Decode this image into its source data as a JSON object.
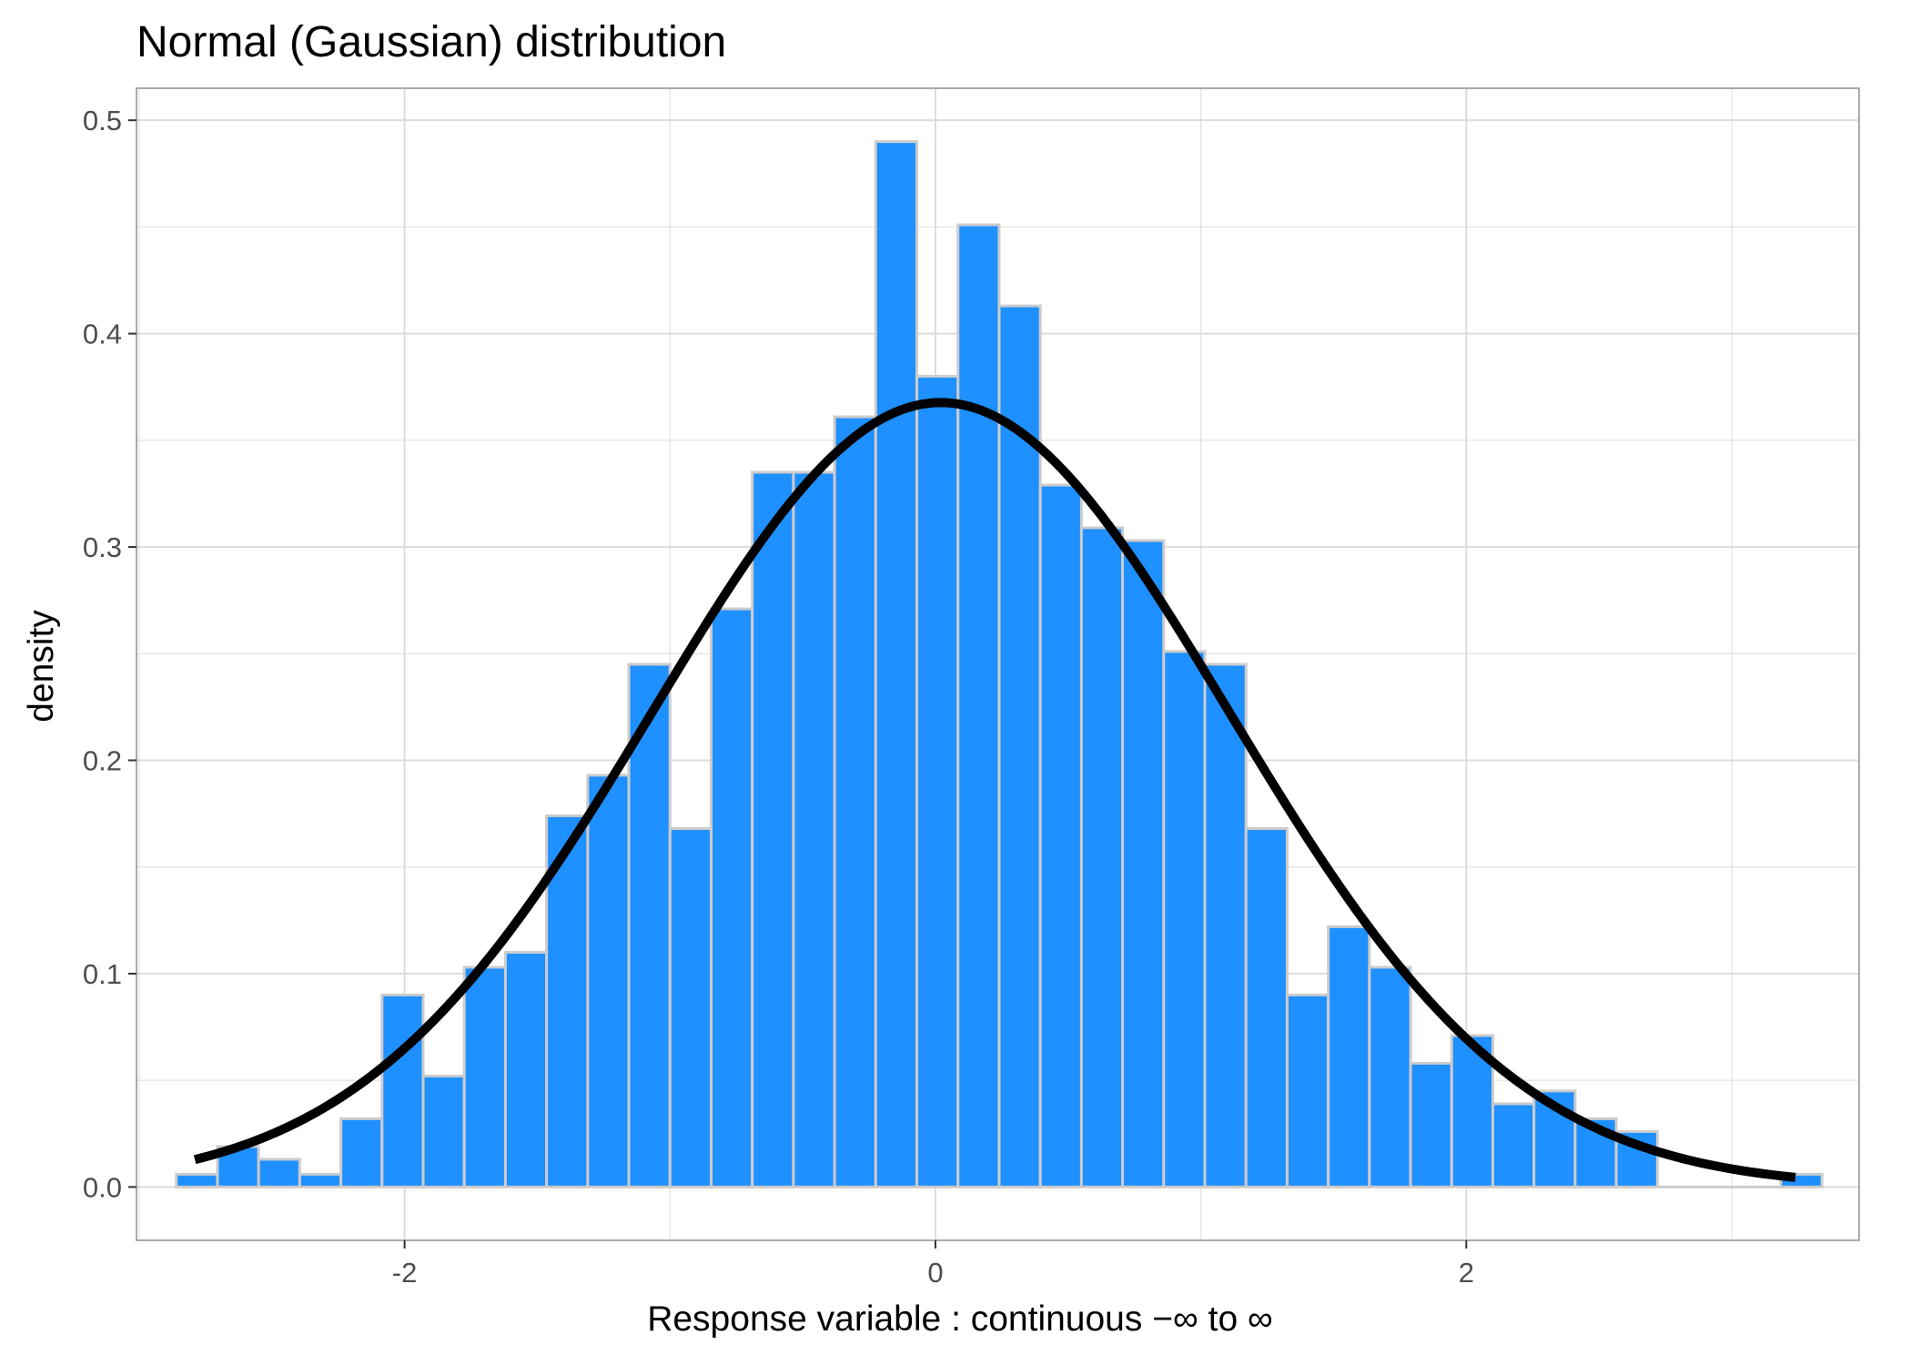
{
  "chart_data": {
    "type": "histogram",
    "title": "Normal (Gaussian) distribution",
    "xlabel": "Response variable :  continuous −∞ to ∞",
    "ylabel": "density",
    "xlim": [
      -3.01,
      3.48
    ],
    "ylim": [
      -0.025,
      0.515
    ],
    "x_ticks": [
      -2,
      0,
      2
    ],
    "x_tick_labels": [
      "-2",
      "0",
      "2"
    ],
    "x_minor_ticks": [
      -3,
      -1,
      1,
      3
    ],
    "y_ticks": [
      0,
      0.1,
      0.2,
      0.3,
      0.4,
      0.5
    ],
    "y_tick_labels": [
      "0.0",
      "0.1",
      "0.2",
      "0.3",
      "0.4",
      "0.5"
    ],
    "y_minor_ticks": [
      0.05,
      0.15,
      0.25,
      0.35,
      0.45
    ],
    "grid": true,
    "bins": {
      "start": -2.86,
      "width": 0.155,
      "values": [
        0.006,
        0.019,
        0.013,
        0.006,
        0.032,
        0.09,
        0.052,
        0.103,
        0.11,
        0.174,
        0.193,
        0.245,
        0.168,
        0.271,
        0.335,
        0.335,
        0.361,
        0.49,
        0.38,
        0.451,
        0.413,
        0.329,
        0.309,
        0.303,
        0.251,
        0.245,
        0.168,
        0.09,
        0.122,
        0.103,
        0.058,
        0.071,
        0.039,
        0.045,
        0.032,
        0.026,
        0,
        0,
        0,
        0.006
      ]
    },
    "density_curve": {
      "distribution": "normal",
      "mean": 0.02,
      "sd": 1.085,
      "x_range": [
        -2.79,
        3.24
      ]
    },
    "colors": {
      "bar_fill": "#1E90FF",
      "bar_outline": "#CCCCCC",
      "curve": "#000000",
      "grid": "#DCDCDC",
      "panel_border": "#AAAAAA",
      "tick_label": "#4D4D4D"
    }
  }
}
